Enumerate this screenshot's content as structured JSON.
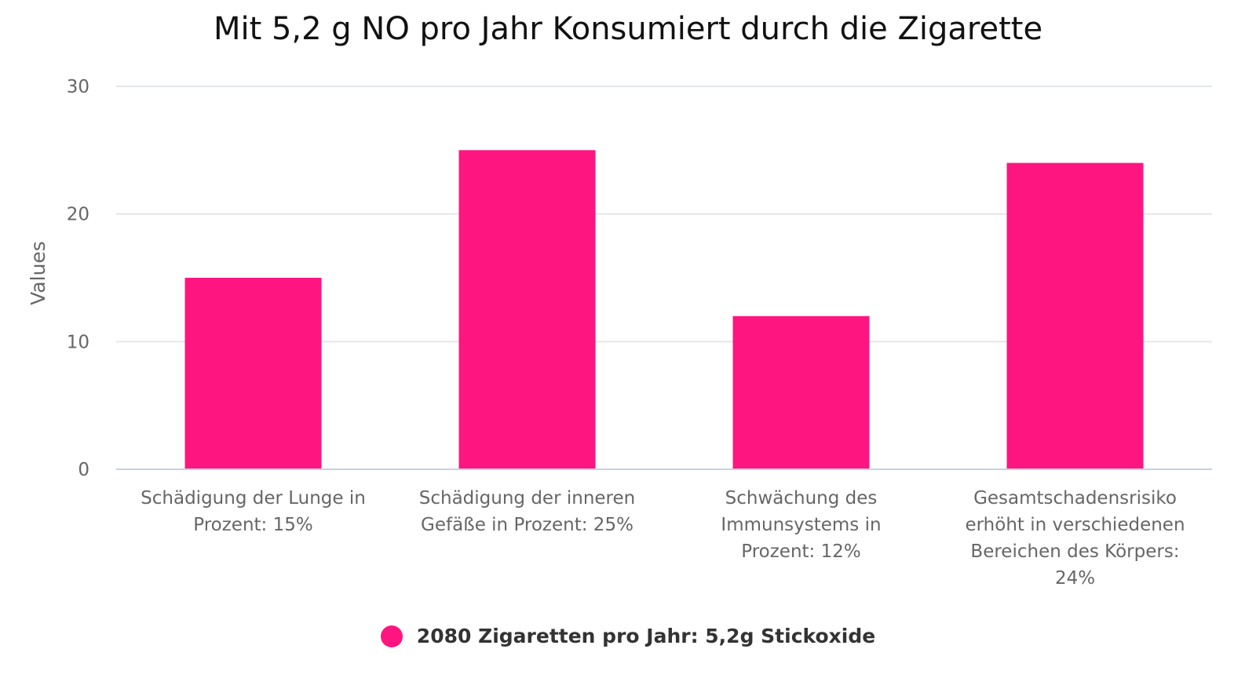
{
  "chart_data": {
    "type": "bar",
    "title": "Mit 5,2 g NO pro Jahr Konsumiert durch die Zigarette",
    "ylabel": "Values",
    "xlabel": "",
    "ylim": [
      0,
      30
    ],
    "yticks": [
      "0",
      "10",
      "20",
      "30"
    ],
    "grid": true,
    "legend_position": "bottom-center",
    "categories": [
      [
        "Schädigung der Lunge in",
        "Prozent: 15%"
      ],
      [
        "Schädigung der inneren",
        "Gefäße in Prozent: 25%"
      ],
      [
        "Schwächung des",
        "Immunsystems in",
        "Prozent: 12%"
      ],
      [
        "Gesamtschadensrisiko",
        "erhöht in verschiedenen",
        "Bereichen des Körpers:",
        "24%"
      ]
    ],
    "series": [
      {
        "name": "2080 Zigaretten pro Jahr: 5,2g Stickoxide",
        "color": "#ff1580",
        "values": [
          15,
          25,
          12,
          24
        ]
      }
    ]
  }
}
